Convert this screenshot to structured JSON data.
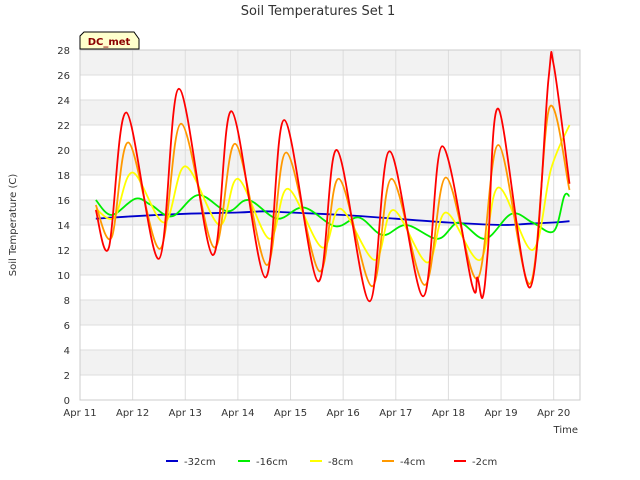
{
  "chart_data": {
    "type": "line",
    "title": "Soil Temperatures Set 1",
    "xlabel": "Time",
    "ylabel": "Soil Temperature (C)",
    "badge": "DC_met",
    "xlim": [
      0,
      9.5
    ],
    "ylim": [
      0,
      28
    ],
    "yticks": [
      0,
      2,
      4,
      6,
      8,
      10,
      12,
      14,
      16,
      18,
      20,
      22,
      24,
      26,
      28
    ],
    "xticks": [
      {
        "x": 0,
        "label": "Apr 11"
      },
      {
        "x": 1,
        "label": "Apr 12"
      },
      {
        "x": 2,
        "label": "Apr 13"
      },
      {
        "x": 3,
        "label": "Apr 14"
      },
      {
        "x": 4,
        "label": "Apr 15"
      },
      {
        "x": 5,
        "label": "Apr 16"
      },
      {
        "x": 6,
        "label": "Apr 17"
      },
      {
        "x": 7,
        "label": "Apr 18"
      },
      {
        "x": 8,
        "label": "Apr 19"
      },
      {
        "x": 9,
        "label": "Apr 20"
      }
    ],
    "grid": true,
    "legend_position": "bottom",
    "series": [
      {
        "name": "-32cm",
        "color": "#0000cc",
        "x": [
          0.3,
          1.0,
          2.0,
          3.0,
          3.5,
          4.0,
          5.0,
          6.0,
          7.0,
          8.0,
          8.5,
          9.0,
          9.3
        ],
        "y": [
          14.5,
          14.7,
          14.9,
          15.0,
          15.1,
          15.0,
          14.8,
          14.5,
          14.2,
          14.0,
          14.1,
          14.2,
          14.3
        ]
      },
      {
        "name": "-16cm",
        "color": "#00ee00",
        "x": [
          0.3,
          0.6,
          1.05,
          1.35,
          1.75,
          2.25,
          2.8,
          3.2,
          3.75,
          4.25,
          4.85,
          5.3,
          5.75,
          6.2,
          6.8,
          7.2,
          7.7,
          8.2,
          8.6,
          9.0,
          9.2,
          9.3
        ],
        "y": [
          16.0,
          14.8,
          16.1,
          15.6,
          14.7,
          16.4,
          15.1,
          16.0,
          14.5,
          15.4,
          13.9,
          14.6,
          13.2,
          14.0,
          12.9,
          14.2,
          12.9,
          14.9,
          14.2,
          13.5,
          16.3,
          16.3
        ],
        "note": ""
      },
      {
        "name": "-8cm",
        "color": "#ffff00",
        "x": [
          0.3,
          0.65,
          1.0,
          1.6,
          2.0,
          2.65,
          3.0,
          3.6,
          3.95,
          4.6,
          4.95,
          5.6,
          5.95,
          6.6,
          6.95,
          7.6,
          7.95,
          8.6,
          8.95,
          9.3
        ],
        "y": [
          15.3,
          14.6,
          18.2,
          14.2,
          18.7,
          14.0,
          17.7,
          12.9,
          16.9,
          12.2,
          15.3,
          11.2,
          15.2,
          11.0,
          15.0,
          11.2,
          17.0,
          12.0,
          18.5,
          22.0
        ]
      },
      {
        "name": "-4cm",
        "color": "#ff9900",
        "x": [
          0.3,
          0.6,
          0.92,
          1.52,
          1.92,
          2.55,
          2.95,
          3.55,
          3.92,
          4.55,
          4.92,
          5.55,
          5.92,
          6.55,
          6.95,
          7.55,
          7.95,
          8.55,
          8.92,
          9.3
        ],
        "y": [
          15.6,
          13.0,
          20.6,
          12.1,
          22.1,
          12.2,
          20.5,
          10.8,
          19.8,
          10.3,
          17.7,
          9.1,
          17.7,
          9.2,
          17.8,
          9.7,
          20.4,
          9.3,
          23.4,
          16.8
        ]
      },
      {
        "name": "-2cm",
        "color": "#ff0000",
        "x": [
          0.3,
          0.55,
          0.88,
          1.5,
          1.88,
          2.52,
          2.88,
          3.52,
          3.88,
          4.52,
          4.88,
          5.5,
          5.88,
          6.52,
          6.88,
          7.45,
          7.55,
          7.65,
          7.75,
          7.95,
          8.55,
          8.9,
          9.0,
          9.3
        ],
        "y": [
          15.2,
          12.2,
          23.0,
          11.3,
          24.9,
          11.6,
          23.1,
          9.8,
          22.4,
          9.5,
          20.0,
          7.9,
          19.9,
          8.3,
          20.3,
          9.2,
          9.8,
          8.2,
          12.0,
          23.3,
          9.0,
          25.6,
          26.8,
          17.3
        ]
      }
    ]
  }
}
